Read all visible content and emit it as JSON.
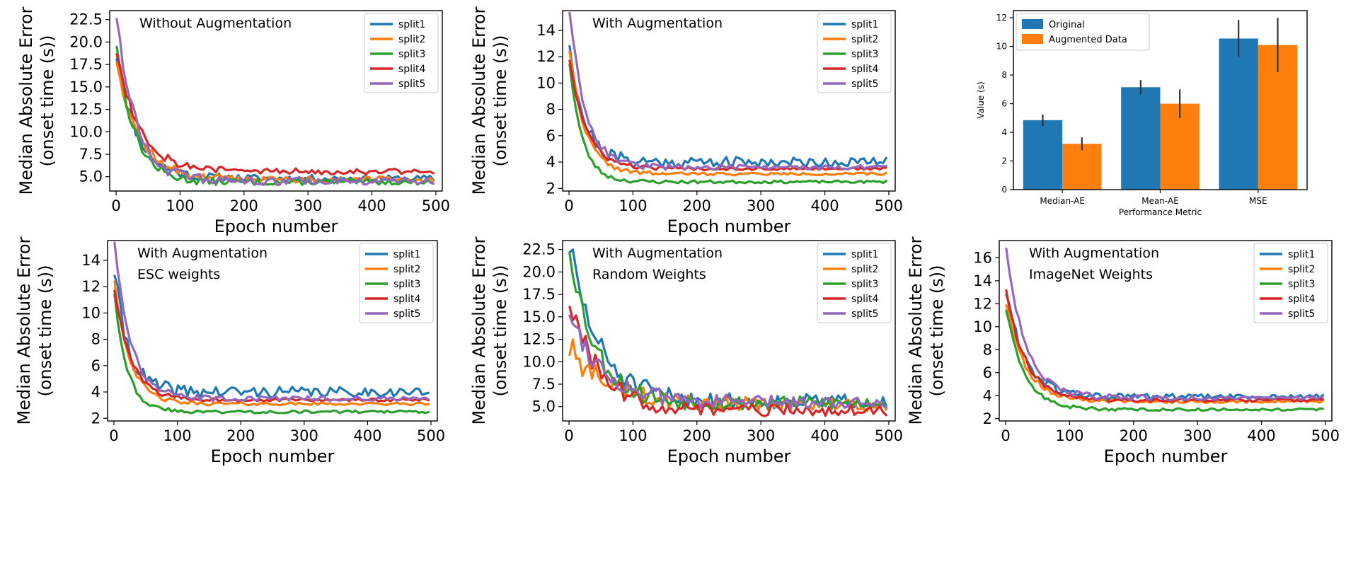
{
  "figure": {
    "colors": {
      "split1": "#1f77b4",
      "split2": "#ff7f0e",
      "split3": "#2ca02c",
      "split4": "#d62728",
      "split5": "#9467bd"
    }
  },
  "chart_data": [
    {
      "id": "p1",
      "type": "line",
      "annotation": [
        "Without Augmentation"
      ],
      "xlabel": "Epoch number",
      "ylabel": [
        "Median Absolute Error",
        "(onset time (s))"
      ],
      "xlim": [
        -10,
        510
      ],
      "ylim": [
        3.4,
        23.5
      ],
      "xticks": [
        0,
        100,
        200,
        300,
        400,
        500
      ],
      "yticks": [
        5.0,
        7.5,
        10.0,
        12.5,
        15.0,
        17.5,
        20.0,
        22.5
      ],
      "ytick_labels": [
        "5.0",
        "7.5",
        "10.0",
        "12.5",
        "15.0",
        "17.5",
        "20.0",
        "22.5"
      ],
      "legend": [
        "split1",
        "split2",
        "split3",
        "split4",
        "split5"
      ],
      "series": [
        {
          "name": "split1",
          "start": 18.5,
          "final": 4.8,
          "tau": 32,
          "noise": 0.55,
          "seed": 11
        },
        {
          "name": "split2",
          "start": 18.0,
          "final": 4.7,
          "tau": 35,
          "noise": 0.5,
          "seed": 12
        },
        {
          "name": "split3",
          "start": 19.8,
          "final": 4.4,
          "tau": 28,
          "noise": 0.45,
          "seed": 13
        },
        {
          "name": "split4",
          "start": 19.0,
          "final": 5.6,
          "tau": 36,
          "noise": 0.5,
          "seed": 14
        },
        {
          "name": "split5",
          "start": 23.0,
          "final": 4.5,
          "tau": 30,
          "noise": 0.6,
          "seed": 15
        }
      ]
    },
    {
      "id": "p2",
      "type": "line",
      "annotation": [
        "With Augmentation"
      ],
      "xlabel": "Epoch number",
      "ylabel": [
        "Median Absolute Error",
        "(onset time (s))"
      ],
      "xlim": [
        -10,
        510
      ],
      "ylim": [
        1.8,
        15.5
      ],
      "xticks": [
        0,
        100,
        200,
        300,
        400,
        500
      ],
      "yticks": [
        2,
        4,
        6,
        8,
        10,
        12,
        14
      ],
      "ytick_labels": [
        "2",
        "4",
        "6",
        "8",
        "10",
        "12",
        "14"
      ],
      "legend": [
        "split1",
        "split2",
        "split3",
        "split4",
        "split5"
      ],
      "series": [
        {
          "name": "split1",
          "start": 13.2,
          "final": 4.0,
          "tau": 22,
          "noise": 0.55,
          "seed": 21
        },
        {
          "name": "split2",
          "start": 12.5,
          "final": 3.1,
          "tau": 24,
          "noise": 0.15,
          "seed": 22
        },
        {
          "name": "split3",
          "start": 11.5,
          "final": 2.5,
          "tau": 20,
          "noise": 0.15,
          "seed": 23
        },
        {
          "name": "split4",
          "start": 11.8,
          "final": 3.5,
          "tau": 26,
          "noise": 0.15,
          "seed": 24
        },
        {
          "name": "split5",
          "start": 15.5,
          "final": 3.6,
          "tau": 25,
          "noise": 0.25,
          "seed": 25
        }
      ]
    },
    {
      "id": "p3",
      "type": "bar",
      "categories": [
        "Median-AE",
        "Mean-AE",
        "MSE"
      ],
      "series": [
        {
          "name": "Original",
          "values": [
            4.85,
            7.15,
            10.55
          ],
          "errors": [
            0.4,
            0.5,
            1.3
          ]
        },
        {
          "name": "Augmented Data",
          "values": [
            3.2,
            6.0,
            10.1
          ],
          "errors": [
            0.45,
            1.0,
            1.9
          ]
        }
      ],
      "xlabel": "Performance Metric",
      "ylabel": "Value (s)",
      "ylim": [
        0,
        12.5
      ],
      "yticks": [
        0,
        2,
        4,
        6,
        8,
        10,
        12
      ],
      "ytick_labels": [
        "0",
        "2",
        "4",
        "6",
        "8",
        "10",
        "12"
      ],
      "legend_labels": [
        "Original",
        "Augmented Data"
      ],
      "legend_position": "top-left"
    },
    {
      "id": "p4",
      "type": "line",
      "annotation": [
        "With Augmentation",
        "ESC weights"
      ],
      "xlabel": "Epoch number",
      "ylabel": [
        "Median Absolute Error",
        "(onset time (s))"
      ],
      "xlim": [
        -10,
        510
      ],
      "ylim": [
        1.8,
        15.5
      ],
      "xticks": [
        0,
        100,
        200,
        300,
        400,
        500
      ],
      "yticks": [
        2,
        4,
        6,
        8,
        10,
        12,
        14
      ],
      "ytick_labels": [
        "2",
        "4",
        "6",
        "8",
        "10",
        "12",
        "14"
      ],
      "legend": [
        "split1",
        "split2",
        "split3",
        "split4",
        "split5"
      ],
      "series": [
        {
          "name": "split1",
          "start": 13.2,
          "final": 4.0,
          "tau": 22,
          "noise": 0.55,
          "seed": 41
        },
        {
          "name": "split2",
          "start": 12.5,
          "final": 3.1,
          "tau": 24,
          "noise": 0.15,
          "seed": 42
        },
        {
          "name": "split3",
          "start": 11.5,
          "final": 2.5,
          "tau": 20,
          "noise": 0.15,
          "seed": 43
        },
        {
          "name": "split4",
          "start": 11.8,
          "final": 3.4,
          "tau": 26,
          "noise": 0.15,
          "seed": 44
        },
        {
          "name": "split5",
          "start": 15.5,
          "final": 3.5,
          "tau": 25,
          "noise": 0.25,
          "seed": 45
        }
      ]
    },
    {
      "id": "p5",
      "type": "line",
      "annotation": [
        "With Augmentation",
        "Random Weights"
      ],
      "xlabel": "Epoch number",
      "ylabel": [
        "Median Absolute Error",
        "(onset time (s))"
      ],
      "xlim": [
        -10,
        510
      ],
      "ylim": [
        3.4,
        23.5
      ],
      "xticks": [
        0,
        100,
        200,
        300,
        400,
        500
      ],
      "yticks": [
        5.0,
        7.5,
        10.0,
        12.5,
        15.0,
        17.5,
        20.0,
        22.5
      ],
      "ytick_labels": [
        "5.0",
        "7.5",
        "10.0",
        "12.5",
        "15.0",
        "17.5",
        "20.0",
        "22.5"
      ],
      "legend": [
        "split1",
        "split2",
        "split3",
        "split4",
        "split5"
      ],
      "series": [
        {
          "name": "split1",
          "start": 23.0,
          "final": 5.6,
          "tau": 45,
          "noise": 1.2,
          "seed": 51
        },
        {
          "name": "split2",
          "start": 11.5,
          "final": 5.2,
          "tau": 60,
          "noise": 1.1,
          "seed": 52
        },
        {
          "name": "split3",
          "start": 22.8,
          "final": 5.4,
          "tau": 40,
          "noise": 1.1,
          "seed": 53
        },
        {
          "name": "split4",
          "start": 16.8,
          "final": 4.6,
          "tau": 45,
          "noise": 1.0,
          "seed": 54
        },
        {
          "name": "split5",
          "start": 15.8,
          "final": 5.5,
          "tau": 50,
          "noise": 1.0,
          "seed": 55
        }
      ]
    },
    {
      "id": "p6",
      "type": "line",
      "annotation": [
        "With Augmentation",
        "ImageNet Weights"
      ],
      "xlabel": "Epoch number",
      "ylabel": [
        "Median Absolute Error",
        "(onset time (s))"
      ],
      "xlim": [
        -10,
        510
      ],
      "ylim": [
        1.8,
        17.5
      ],
      "xticks": [
        0,
        100,
        200,
        300,
        400,
        500
      ],
      "yticks": [
        2,
        4,
        6,
        8,
        10,
        12,
        14,
        16
      ],
      "ytick_labels": [
        "2",
        "4",
        "6",
        "8",
        "10",
        "12",
        "14",
        "16"
      ],
      "legend": [
        "split1",
        "split2",
        "split3",
        "split4",
        "split5"
      ],
      "series": [
        {
          "name": "split1",
          "start": 13.0,
          "final": 3.9,
          "tau": 30,
          "noise": 0.35,
          "seed": 61
        },
        {
          "name": "split2",
          "start": 12.0,
          "final": 3.5,
          "tau": 30,
          "noise": 0.2,
          "seed": 62
        },
        {
          "name": "split3",
          "start": 11.5,
          "final": 2.8,
          "tau": 28,
          "noise": 0.15,
          "seed": 63
        },
        {
          "name": "split4",
          "start": 13.3,
          "final": 3.6,
          "tau": 30,
          "noise": 0.2,
          "seed": 64
        },
        {
          "name": "split5",
          "start": 17.0,
          "final": 3.8,
          "tau": 30,
          "noise": 0.3,
          "seed": 65
        }
      ]
    }
  ]
}
